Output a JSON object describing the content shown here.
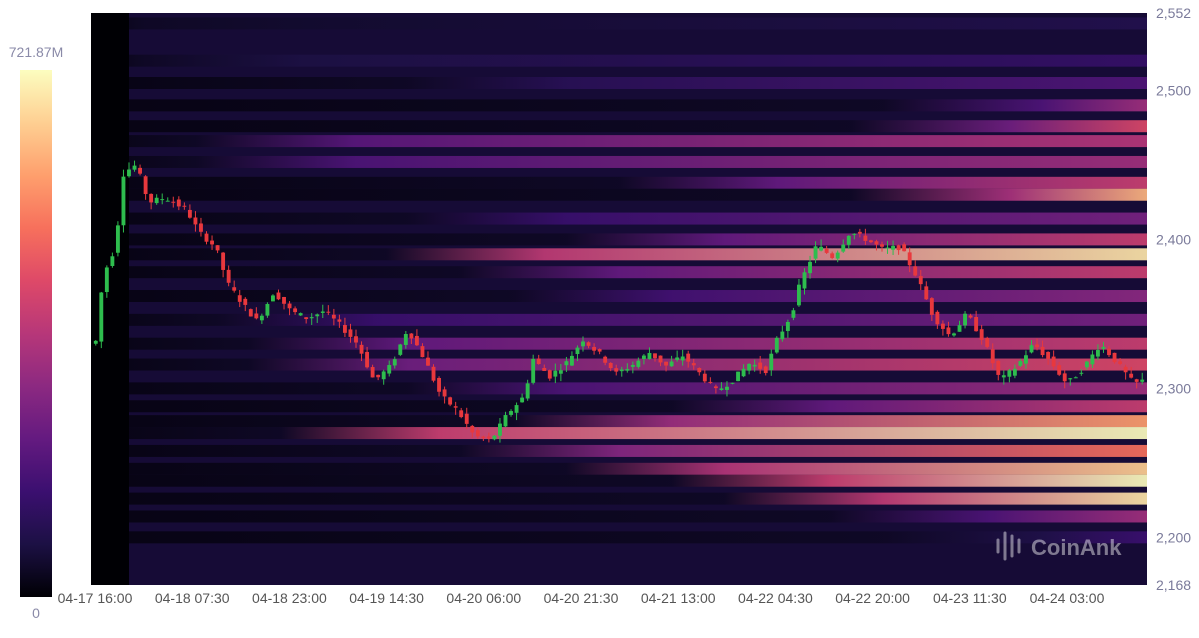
{
  "chart_data": {
    "type": "heatmap",
    "subtype": "liquidation-heatmap-with-candlesticks",
    "watermark": "CoinAnk",
    "x_ticks": [
      "04-17 16:00",
      "04-18 07:30",
      "04-18 23:00",
      "04-19 14:30",
      "04-20 06:00",
      "04-20 21:30",
      "04-21 13:00",
      "04-22 04:30",
      "04-22 20:00",
      "04-23 11:30",
      "04-24 03:00"
    ],
    "y_ticks": [
      {
        "value": 2552,
        "label": "2,552"
      },
      {
        "value": 2500,
        "label": "2,500"
      },
      {
        "value": 2400,
        "label": "2,400"
      },
      {
        "value": 2300,
        "label": "2,300"
      },
      {
        "value": 2200,
        "label": "2,200"
      },
      {
        "value": 2168,
        "label": "2,168"
      }
    ],
    "y_range": [
      2168,
      2552
    ],
    "color_scale": {
      "min": 0,
      "max": 721.87,
      "min_label": "0",
      "max_label": "721.87M",
      "colors": [
        "#000004",
        "#1c1044",
        "#3b0f70",
        "#641a80",
        "#8c2981",
        "#b73779",
        "#de4968",
        "#f7705c",
        "#fe9f6d",
        "#fecf92",
        "#fcfdbf"
      ]
    },
    "up_color": "#2ebd4e",
    "down_color": "#e8383d",
    "price_path": [
      [
        0,
        2330
      ],
      [
        0.8,
        2332
      ],
      [
        1.5,
        2375
      ],
      [
        3,
        2395
      ],
      [
        4,
        2445
      ],
      [
        5.5,
        2450
      ],
      [
        7,
        2425
      ],
      [
        9,
        2428
      ],
      [
        11.5,
        2420
      ],
      [
        13,
        2405
      ],
      [
        15,
        2395
      ],
      [
        16.5,
        2370
      ],
      [
        18.5,
        2355
      ],
      [
        20,
        2345
      ],
      [
        22,
        2365
      ],
      [
        24,
        2352
      ],
      [
        26,
        2347
      ],
      [
        28,
        2352
      ],
      [
        30,
        2342
      ],
      [
        32,
        2330
      ],
      [
        34,
        2305
      ],
      [
        36,
        2315
      ],
      [
        38,
        2340
      ],
      [
        40,
        2320
      ],
      [
        42,
        2295
      ],
      [
        44,
        2285
      ],
      [
        46,
        2268
      ],
      [
        48,
        2265
      ],
      [
        50,
        2283
      ],
      [
        52,
        2295
      ],
      [
        53,
        2320
      ],
      [
        55,
        2308
      ],
      [
        57,
        2317
      ],
      [
        59,
        2333
      ],
      [
        61,
        2323
      ],
      [
        63,
        2310
      ],
      [
        65,
        2316
      ],
      [
        67,
        2324
      ],
      [
        69,
        2315
      ],
      [
        71,
        2322
      ],
      [
        73,
        2310
      ],
      [
        75,
        2298
      ],
      [
        77,
        2306
      ],
      [
        79,
        2317
      ],
      [
        81,
        2312
      ],
      [
        82,
        2330
      ],
      [
        84,
        2350
      ],
      [
        85,
        2370
      ],
      [
        87,
        2396
      ],
      [
        89,
        2388
      ],
      [
        91,
        2405
      ],
      [
        93,
        2400
      ],
      [
        95,
        2393
      ],
      [
        97,
        2395
      ],
      [
        99,
        2375
      ],
      [
        101,
        2348
      ],
      [
        103,
        2335
      ],
      [
        105,
        2350
      ],
      [
        107,
        2332
      ],
      [
        109,
        2305
      ],
      [
        111,
        2315
      ],
      [
        113,
        2330
      ],
      [
        115,
        2318
      ],
      [
        117,
        2303
      ],
      [
        119,
        2314
      ],
      [
        121,
        2330
      ],
      [
        123,
        2317
      ],
      [
        125,
        2303
      ],
      [
        126,
        2305
      ]
    ],
    "heat_bands": [
      {
        "price": 2545,
        "start": 0.05,
        "intensity": 0.12
      },
      {
        "price": 2520,
        "start": 0.05,
        "intensity": 0.18
      },
      {
        "price": 2505,
        "start": 0.3,
        "intensity": 0.25
      },
      {
        "price": 2490,
        "start": 0.75,
        "intensity": 0.45
      },
      {
        "price": 2476,
        "start": 0.72,
        "intensity": 0.6
      },
      {
        "price": 2466,
        "start": 0.1,
        "intensity": 0.5
      },
      {
        "price": 2452,
        "start": 0.1,
        "intensity": 0.45
      },
      {
        "price": 2438,
        "start": 0.5,
        "intensity": 0.55
      },
      {
        "price": 2430,
        "start": 0.72,
        "intensity": 0.85
      },
      {
        "price": 2414,
        "start": 0.3,
        "intensity": 0.35
      },
      {
        "price": 2400,
        "start": 0.45,
        "intensity": 0.55
      },
      {
        "price": 2390,
        "start": 0.28,
        "intensity": 0.95
      },
      {
        "price": 2378,
        "start": 0.35,
        "intensity": 0.55
      },
      {
        "price": 2362,
        "start": 0.4,
        "intensity": 0.4
      },
      {
        "price": 2346,
        "start": 0.12,
        "intensity": 0.35
      },
      {
        "price": 2330,
        "start": 0.15,
        "intensity": 0.55
      },
      {
        "price": 2316,
        "start": 0.15,
        "intensity": 0.6
      },
      {
        "price": 2300,
        "start": 0.3,
        "intensity": 0.45
      },
      {
        "price": 2288,
        "start": 0.55,
        "intensity": 0.55
      },
      {
        "price": 2278,
        "start": 0.4,
        "intensity": 0.8
      },
      {
        "price": 2270,
        "start": 0.18,
        "intensity": 1.0
      },
      {
        "price": 2258,
        "start": 0.35,
        "intensity": 0.7
      },
      {
        "price": 2246,
        "start": 0.45,
        "intensity": 0.9
      },
      {
        "price": 2238,
        "start": 0.55,
        "intensity": 1.0
      },
      {
        "price": 2226,
        "start": 0.6,
        "intensity": 0.95
      },
      {
        "price": 2214,
        "start": 0.7,
        "intensity": 0.45
      },
      {
        "price": 2200,
        "start": 0.75,
        "intensity": 0.2
      }
    ]
  }
}
